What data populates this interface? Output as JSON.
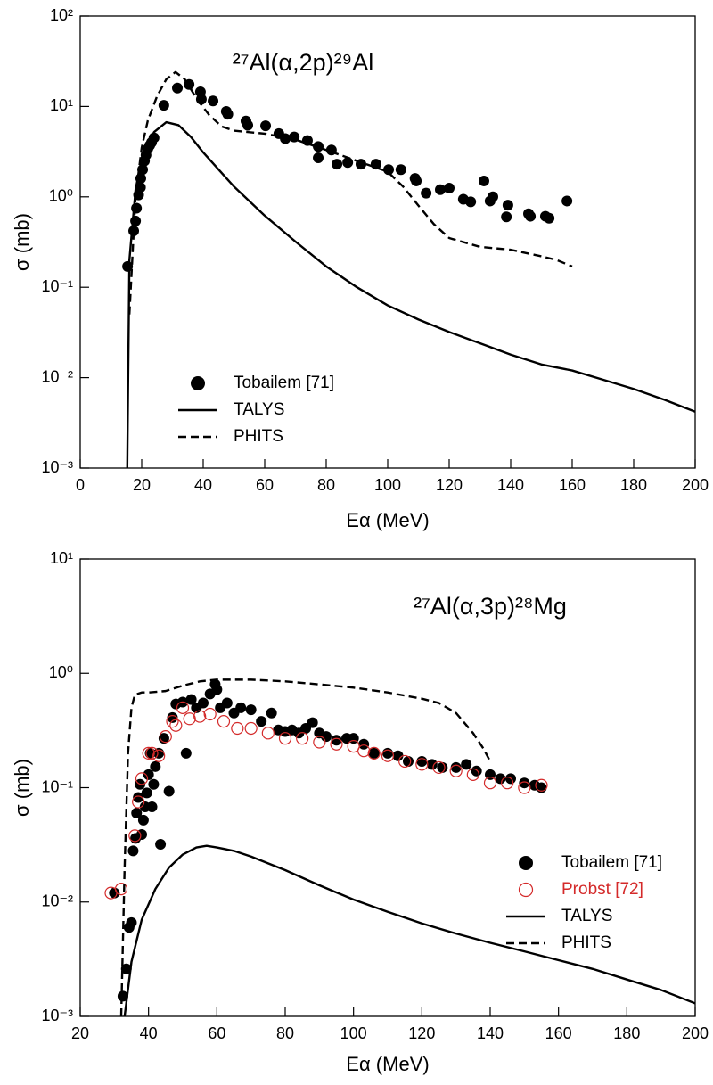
{
  "chart_data": [
    {
      "type": "line",
      "title": "²⁷Al(α,2p)²⁹Al",
      "x_label": "Eα (MeV)",
      "y_label": "σ (mb)",
      "log_y": true,
      "legend": "lower left",
      "xlim": [
        0,
        200
      ],
      "xticks": [
        0,
        20,
        40,
        60,
        80,
        100,
        120,
        140,
        160,
        180,
        200
      ],
      "ylim": [
        0.001,
        100
      ],
      "yticks": [
        {
          "value": 0.001,
          "label": "10⁻³"
        },
        {
          "value": 0.01,
          "label": "10⁻²"
        },
        {
          "value": 0.1,
          "label": "10⁻¹"
        },
        {
          "value": 1,
          "label": "10⁰"
        },
        {
          "value": 10,
          "label": "10¹"
        },
        {
          "value": 100,
          "label": "10²"
        }
      ],
      "series": [
        {
          "name": "Tobailem [71]",
          "color": "#000000",
          "style": "filled-circle",
          "x": [
            15.4,
            17.4,
            18,
            18.3,
            19,
            19.6,
            19.7,
            20.3,
            20.9,
            21.4,
            22,
            22.6,
            23.2,
            24,
            27.2,
            31.6,
            35.4,
            39.1,
            39.4,
            43.2,
            47.5,
            48,
            53.9,
            54.5,
            60.3,
            64.6,
            66.7,
            69.6,
            73.9,
            77.4,
            77.4,
            81.7,
            83.5,
            87,
            91.3,
            96.2,
            100.3,
            104.3,
            108.9,
            109.3,
            112.5,
            117.1,
            120,
            124.6,
            127,
            131.3,
            134.2,
            133.3,
            139.1,
            138.6,
            145.8,
            146.4,
            151.3,
            152.5,
            158.3
          ],
          "values": [
            0.17,
            0.42,
            0.54,
            0.75,
            1.05,
            1.27,
            1.6,
            2.0,
            2.5,
            2.9,
            3.4,
            3.7,
            4.0,
            4.5,
            10.3,
            16,
            17.5,
            14.5,
            12,
            11.5,
            8.8,
            8.2,
            6.9,
            6.2,
            6.1,
            5.0,
            4.4,
            4.6,
            4.2,
            3.6,
            2.7,
            3.3,
            2.3,
            2.4,
            2.3,
            2.3,
            2.0,
            2.0,
            1.6,
            1.5,
            1.1,
            1.2,
            1.25,
            0.94,
            0.88,
            1.5,
            1.0,
            0.9,
            0.81,
            0.6,
            0.65,
            0.61,
            0.61,
            0.58,
            0.9
          ]
        },
        {
          "name": "TALYS",
          "color": "#000000",
          "style": "solid",
          "x": [
            15.3,
            15.6,
            16,
            18,
            20,
            24,
            28,
            32,
            36,
            40,
            50,
            60,
            70,
            80,
            90,
            100,
            110,
            120,
            130,
            140,
            150,
            160,
            170,
            180,
            190,
            200
          ],
          "values": [
            0.001,
            0.01,
            0.2,
            1.2,
            2.6,
            5.2,
            6.7,
            6.2,
            4.6,
            3.1,
            1.3,
            0.62,
            0.32,
            0.17,
            0.1,
            0.063,
            0.044,
            0.032,
            0.024,
            0.018,
            0.014,
            0.012,
            0.0095,
            0.0075,
            0.0057,
            0.0042
          ]
        },
        {
          "name": "PHITS",
          "color": "#000000",
          "style": "dashed",
          "x": [
            16,
            18,
            20,
            22,
            25,
            28,
            31,
            34,
            38,
            42,
            46,
            50,
            60,
            70,
            80,
            90,
            100,
            105,
            110,
            115,
            120,
            130,
            140,
            150,
            155,
            160
          ],
          "values": [
            0.05,
            1.0,
            3.5,
            7,
            13,
            20,
            24,
            20,
            12,
            8,
            6,
            5.4,
            5,
            4.3,
            3.3,
            2.5,
            1.9,
            1.3,
            0.8,
            0.5,
            0.35,
            0.28,
            0.26,
            0.22,
            0.2,
            0.17
          ]
        }
      ]
    },
    {
      "type": "line",
      "title": "²⁷Al(α,3p)²⁸Mg",
      "x_label": "Eα (MeV)",
      "y_label": "σ (mb)",
      "log_y": true,
      "legend": "lower right",
      "xlim": [
        20,
        200
      ],
      "xticks": [
        20,
        40,
        60,
        80,
        100,
        120,
        140,
        160,
        180,
        200
      ],
      "ylim": [
        0.001,
        10
      ],
      "yticks": [
        {
          "value": 0.001,
          "label": "10⁻³"
        },
        {
          "value": 0.01,
          "label": "10⁻²"
        },
        {
          "value": 0.1,
          "label": "10⁻¹"
        },
        {
          "value": 1,
          "label": "10⁰"
        },
        {
          "value": 10,
          "label": "10¹"
        }
      ],
      "series": [
        {
          "name": "Tobailem [71]",
          "color": "#000000",
          "style": "filled-circle",
          "x": [
            30,
            32.5,
            33.5,
            34.3,
            35,
            35.5,
            36.2,
            36.5,
            37,
            37.5,
            38,
            38.5,
            39,
            39.5,
            40,
            40.5,
            41,
            41.5,
            42,
            43,
            43.5,
            44.5,
            46,
            47,
            48,
            50,
            51,
            52.5,
            54,
            56,
            58,
            59.5,
            60,
            61,
            63,
            65,
            67,
            70,
            73,
            76,
            78,
            80,
            82,
            84,
            86,
            88,
            90,
            92,
            95,
            98,
            100,
            103,
            106,
            110,
            113,
            116,
            120,
            123,
            126,
            130,
            133,
            136,
            140,
            143,
            146,
            150,
            153,
            155
          ],
          "values": [
            0.012,
            0.0015,
            0.0026,
            0.006,
            0.0066,
            0.028,
            0.036,
            0.06,
            0.082,
            0.107,
            0.039,
            0.052,
            0.068,
            0.09,
            0.13,
            0.2,
            0.068,
            0.107,
            0.153,
            0.2,
            0.032,
            0.27,
            0.093,
            0.41,
            0.54,
            0.56,
            0.2,
            0.59,
            0.5,
            0.55,
            0.66,
            0.8,
            0.72,
            0.5,
            0.55,
            0.45,
            0.5,
            0.48,
            0.38,
            0.45,
            0.32,
            0.31,
            0.32,
            0.3,
            0.33,
            0.37,
            0.3,
            0.28,
            0.26,
            0.27,
            0.27,
            0.24,
            0.2,
            0.2,
            0.19,
            0.17,
            0.17,
            0.16,
            0.15,
            0.15,
            0.16,
            0.14,
            0.13,
            0.12,
            0.12,
            0.11,
            0.105,
            0.1
          ]
        },
        {
          "name": "Probst [72]",
          "color": "#d42a2a",
          "style": "open-circle",
          "x": [
            29,
            32,
            36,
            37,
            38,
            40,
            41,
            43,
            45,
            47,
            48,
            50,
            52,
            55,
            58,
            62,
            66,
            70,
            75,
            80,
            85,
            90,
            95,
            100,
            103,
            106,
            110,
            115,
            120,
            125,
            130,
            135,
            140,
            145,
            150,
            155
          ],
          "values": [
            0.012,
            0.013,
            0.038,
            0.075,
            0.12,
            0.2,
            0.2,
            0.19,
            0.28,
            0.38,
            0.35,
            0.5,
            0.4,
            0.42,
            0.44,
            0.38,
            0.33,
            0.33,
            0.3,
            0.27,
            0.27,
            0.25,
            0.24,
            0.23,
            0.21,
            0.2,
            0.19,
            0.17,
            0.16,
            0.15,
            0.14,
            0.13,
            0.11,
            0.11,
            0.1,
            0.105
          ]
        },
        {
          "name": "TALYS",
          "color": "#000000",
          "style": "solid",
          "x": [
            33,
            35,
            38,
            42,
            46,
            50,
            54,
            57,
            60,
            65,
            70,
            80,
            90,
            100,
            110,
            120,
            130,
            140,
            150,
            160,
            170,
            180,
            190,
            200
          ],
          "values": [
            0.001,
            0.003,
            0.007,
            0.013,
            0.02,
            0.026,
            0.03,
            0.031,
            0.03,
            0.028,
            0.025,
            0.019,
            0.014,
            0.0105,
            0.0082,
            0.0065,
            0.0053,
            0.0044,
            0.0037,
            0.0031,
            0.0026,
            0.0021,
            0.0017,
            0.0013
          ]
        },
        {
          "name": "PHITS",
          "color": "#000000",
          "style": "dashed",
          "x": [
            32,
            33,
            34,
            35,
            36,
            38,
            40,
            45,
            50,
            55,
            60,
            70,
            80,
            90,
            100,
            110,
            120,
            125,
            130,
            135,
            138,
            140
          ],
          "values": [
            0.001,
            0.02,
            0.2,
            0.5,
            0.65,
            0.68,
            0.68,
            0.7,
            0.78,
            0.85,
            0.88,
            0.88,
            0.85,
            0.8,
            0.75,
            0.68,
            0.6,
            0.55,
            0.45,
            0.3,
            0.22,
            0.17
          ]
        }
      ]
    }
  ]
}
